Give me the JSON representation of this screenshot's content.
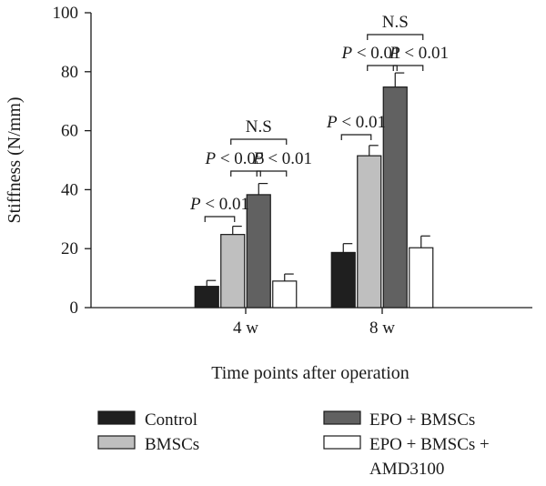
{
  "chart_data": {
    "type": "bar",
    "xlabel": "Time points after operation",
    "ylabel": "Stiffness (N/mm)",
    "ylim": [
      0,
      100
    ],
    "yticks": [
      0,
      20,
      40,
      60,
      80,
      100
    ],
    "categories": [
      "4 w",
      "8 w"
    ],
    "series": [
      {
        "name": "Control",
        "values": [
          7.2,
          18.7
        ],
        "errors": [
          2.0,
          3.0
        ],
        "color": "#1f1f1f"
      },
      {
        "name": "BMSCs",
        "values": [
          24.8,
          51.5
        ],
        "errors": [
          2.8,
          3.5
        ],
        "color": "#bfbfbf"
      },
      {
        "name": "EPO + BMSCs",
        "values": [
          38.3,
          74.8
        ],
        "errors": [
          3.8,
          4.8
        ],
        "color": "#616161"
      },
      {
        "name": "EPO + BMSCs + AMD3100",
        "values": [
          9.0,
          20.3
        ],
        "errors": [
          2.4,
          4.0
        ],
        "color": "#ffffff"
      }
    ],
    "legend_position": "bottom",
    "annotations": [
      {
        "category": 0,
        "from": 0,
        "to": 1,
        "label_parts": [
          "P",
          " < 0.01"
        ]
      },
      {
        "category": 0,
        "from": 1,
        "to": 2,
        "label_parts": [
          "P",
          " < 0.05"
        ]
      },
      {
        "category": 0,
        "from": 2,
        "to": 3,
        "label_parts": [
          "P",
          " < 0.01"
        ]
      },
      {
        "category": 0,
        "from": 1,
        "to": 3,
        "label_parts": [
          "N.S",
          ""
        ]
      },
      {
        "category": 1,
        "from": 0,
        "to": 1,
        "label_parts": [
          "P",
          " < 0.01"
        ]
      },
      {
        "category": 1,
        "from": 1,
        "to": 2,
        "label_parts": [
          "P",
          " < 0.01"
        ]
      },
      {
        "category": 1,
        "from": 2,
        "to": 3,
        "label_parts": [
          "P",
          " < 0.01"
        ]
      },
      {
        "category": 1,
        "from": 1,
        "to": 3,
        "label_parts": [
          "N.S",
          ""
        ]
      }
    ]
  }
}
